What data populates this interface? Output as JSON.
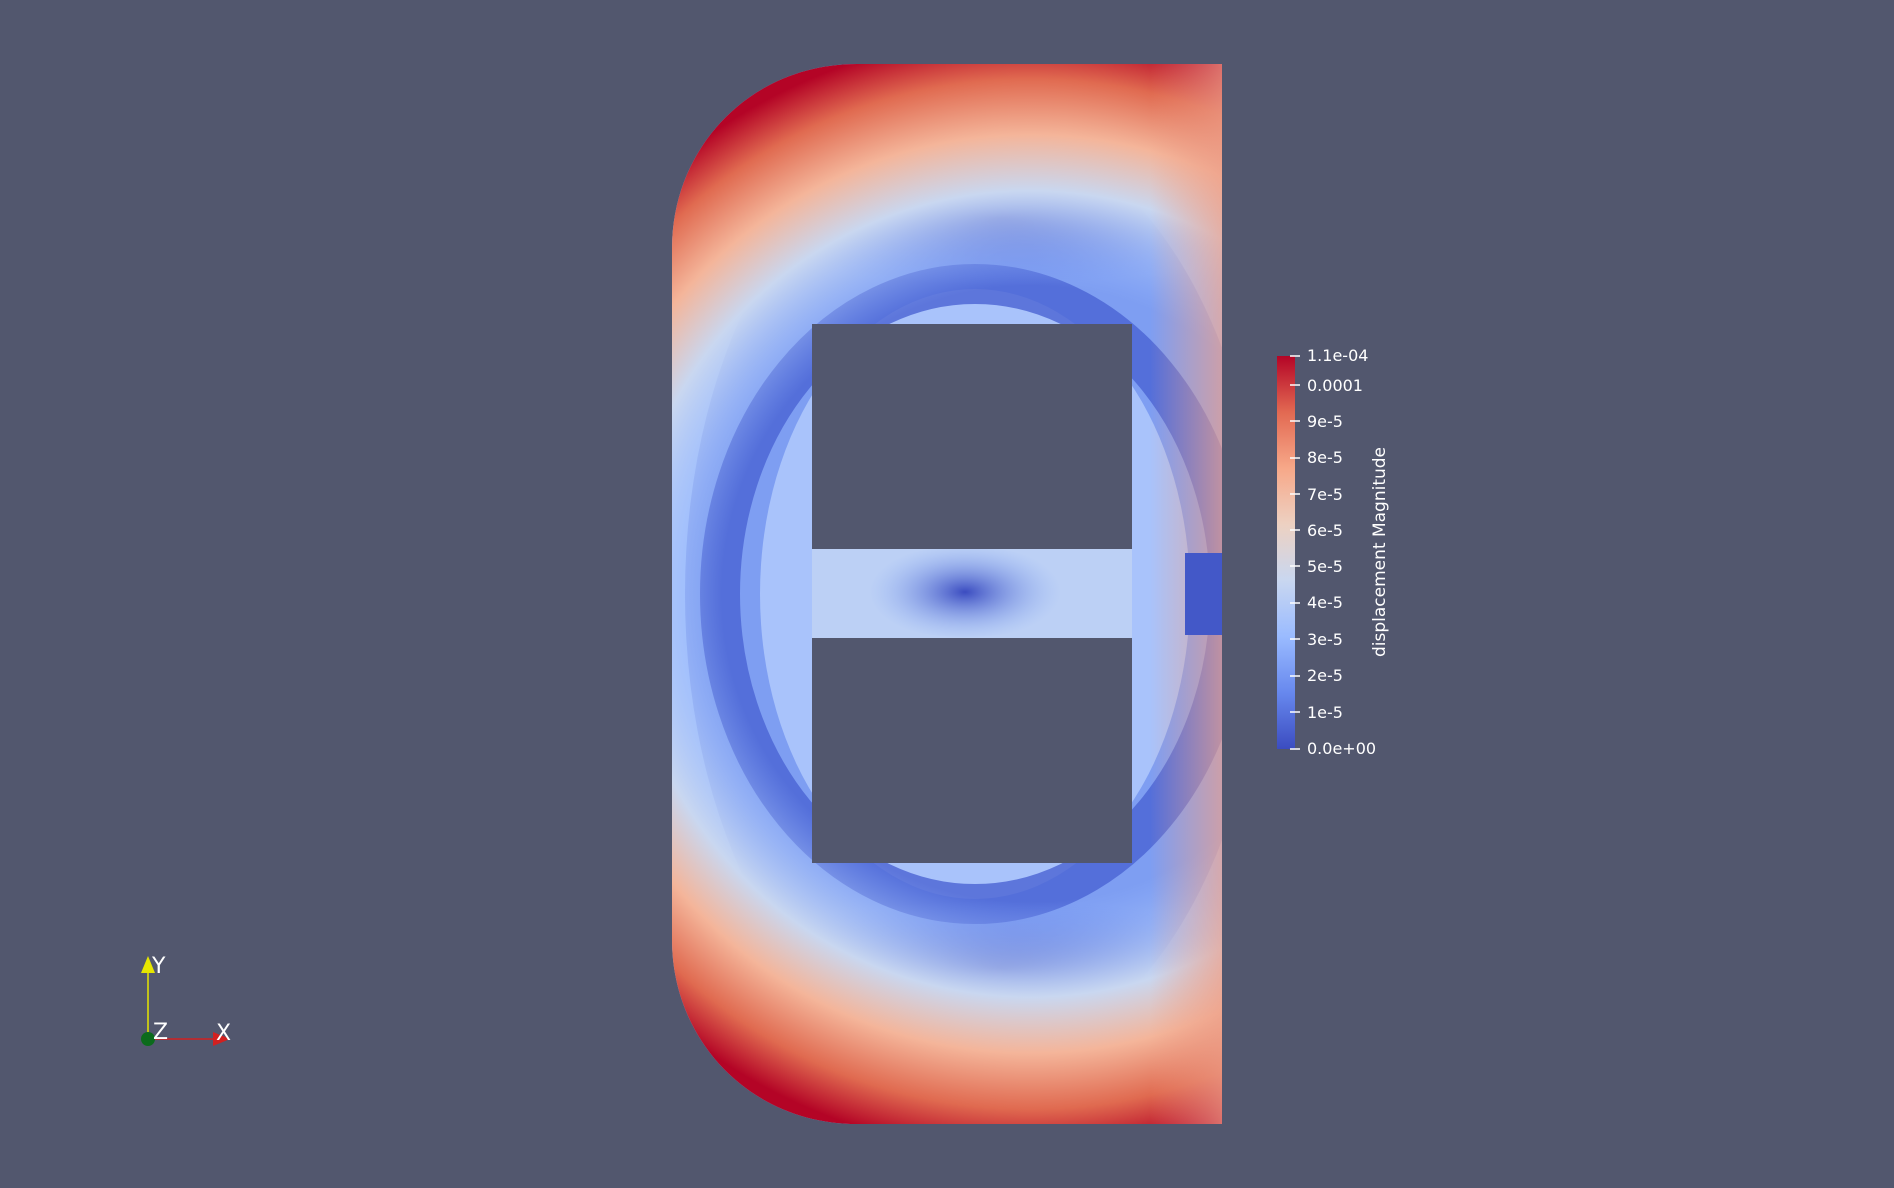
{
  "scalar_bar": {
    "title": "displacement Magnitude",
    "tick_labels": [
      "1.1e-04",
      "0.0001",
      "9e-5",
      "8e-5",
      "7e-5",
      "6e-5",
      "5e-5",
      "4e-5",
      "3e-5",
      "2e-5",
      "1e-5",
      "0.0e+00"
    ],
    "range": [
      0,
      0.00011
    ],
    "colormap": [
      "#3b4cc0",
      "#6788ee",
      "#9abbff",
      "#c9d7f0",
      "#edd1c2",
      "#f7a889",
      "#e26952",
      "#b40426"
    ]
  },
  "axes": {
    "y_label": "Y",
    "z_label": "Z",
    "x_label": "X",
    "colors": {
      "x": "#d22020",
      "y": "#e6e600",
      "z": "#0b6b1c"
    }
  },
  "background_color": "#52576e"
}
